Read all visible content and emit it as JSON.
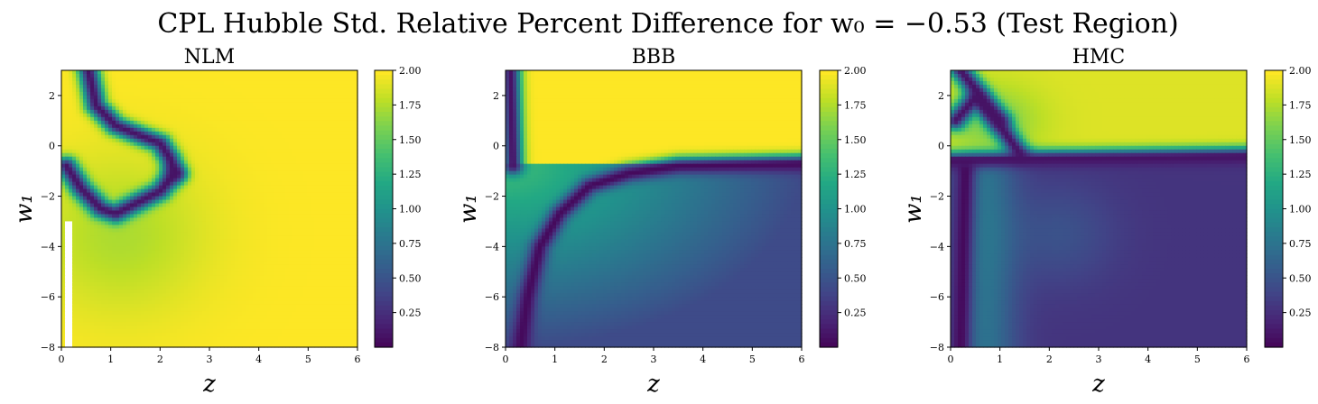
{
  "figure": {
    "suptitle": "CPL Hubble Std. Relative Percent Difference for w₀ = −0.53 (Test Region)"
  },
  "chart_data": [
    {
      "type": "heatmap",
      "title": "NLM",
      "xlabel": "z",
      "ylabel": "w₁",
      "xlim": [
        0,
        6
      ],
      "ylim": [
        -8,
        3
      ],
      "x_ticks": [
        "0",
        "1",
        "2",
        "3",
        "4",
        "5",
        "6"
      ],
      "y_ticks": [
        "−8",
        "−6",
        "−4",
        "−2",
        "0",
        "2"
      ],
      "colorbar": {
        "min": 0,
        "max": 2.0,
        "ticks": [
          "0.25",
          "0.50",
          "0.75",
          "1.00",
          "1.25",
          "1.50",
          "1.75",
          "2.00"
        ],
        "colormap": "viridis"
      },
      "features": [
        {
          "kind": "low_band",
          "value": 0.1,
          "points": [
            [
              0.55,
              3.0
            ],
            [
              0.7,
              1.6
            ],
            [
              1.1,
              0.8
            ],
            [
              1.6,
              0.4
            ],
            [
              2.0,
              0.1
            ],
            [
              2.2,
              -0.5
            ],
            [
              2.3,
              -1.1
            ]
          ]
        },
        {
          "kind": "low_band",
          "value": 0.1,
          "points": [
            [
              0.1,
              -0.8
            ],
            [
              0.4,
              -1.7
            ],
            [
              0.8,
              -2.5
            ],
            [
              1.1,
              -2.7
            ],
            [
              1.6,
              -2.2
            ],
            [
              2.0,
              -1.8
            ],
            [
              2.3,
              -1.1
            ]
          ]
        }
      ],
      "background_value": 2.0,
      "missing_region": {
        "x": [
          0.05,
          0.2
        ],
        "y": [
          -8,
          -3
        ]
      }
    },
    {
      "type": "heatmap",
      "title": "BBB",
      "xlabel": "z",
      "ylabel": "w₁",
      "xlim": [
        0,
        6
      ],
      "ylim": [
        -8,
        3
      ],
      "x_ticks": [
        "0",
        "1",
        "2",
        "3",
        "4",
        "5",
        "6"
      ],
      "y_ticks": [
        "−8",
        "−6",
        "−4",
        "−2",
        "0",
        "2"
      ],
      "colorbar": {
        "min": 0,
        "max": 2.0,
        "ticks": [
          "0.25",
          "0.50",
          "0.75",
          "1.00",
          "1.25",
          "1.50",
          "1.75",
          "2.00"
        ],
        "colormap": "viridis"
      },
      "features": [
        {
          "kind": "low_band",
          "value": 0.05,
          "points": [
            [
              0.3,
              -8.0
            ],
            [
              0.45,
              -6.0
            ],
            [
              0.7,
              -4.0
            ],
            [
              1.1,
              -2.7
            ],
            [
              1.7,
              -1.6
            ],
            [
              2.5,
              -1.1
            ],
            [
              3.5,
              -0.8
            ],
            [
              6.0,
              -0.7
            ]
          ]
        },
        {
          "kind": "low_band",
          "value": 0.1,
          "points": [
            [
              0.1,
              3.0
            ],
            [
              0.15,
              -0.8
            ]
          ]
        }
      ],
      "upper_region_value": 2.0,
      "lower_region_gradient": {
        "near_value": 1.4,
        "far_value": 0.45
      }
    },
    {
      "type": "heatmap",
      "title": "HMC",
      "xlabel": "z",
      "ylabel": "w₁",
      "xlim": [
        0,
        6
      ],
      "ylim": [
        -8,
        3
      ],
      "x_ticks": [
        "0",
        "1",
        "2",
        "3",
        "4",
        "5",
        "6"
      ],
      "y_ticks": [
        "−8",
        "−6",
        "−4",
        "−2",
        "0",
        "2"
      ],
      "colorbar": {
        "min": 0,
        "max": 2.0,
        "ticks": [
          "0.25",
          "0.50",
          "0.75",
          "1.00",
          "1.25",
          "1.50",
          "1.75",
          "2.00"
        ],
        "colormap": "viridis"
      },
      "features": [
        {
          "kind": "low_band",
          "value": 0.1,
          "points": [
            [
              0.2,
              3.0
            ],
            [
              0.6,
              2.0
            ],
            [
              1.0,
              0.8
            ],
            [
              1.4,
              -0.3
            ]
          ]
        },
        {
          "kind": "low_band",
          "value": 0.1,
          "points": [
            [
              0.1,
              1.0
            ],
            [
              0.5,
              1.9
            ],
            [
              1.0,
              1.0
            ]
          ]
        },
        {
          "kind": "low_band",
          "value": 0.1,
          "points": [
            [
              0.0,
              -0.6
            ],
            [
              2.0,
              -0.5
            ],
            [
              6.0,
              -0.4
            ]
          ]
        },
        {
          "kind": "low_band",
          "value": 0.05,
          "points": [
            [
              0.2,
              -8.0
            ],
            [
              0.25,
              -4.0
            ],
            [
              0.3,
              -1.0
            ]
          ]
        }
      ],
      "upper_region_value": 1.9,
      "lower_region_value": 0.3
    }
  ]
}
